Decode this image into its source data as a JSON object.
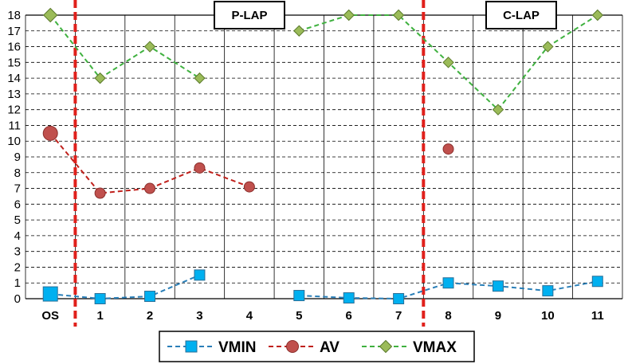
{
  "chart_data": {
    "type": "line",
    "categories": [
      "OS",
      "1",
      "2",
      "3",
      "4",
      "5",
      "6",
      "7",
      "8",
      "9",
      "10",
      "11"
    ],
    "y_ticks": [
      "0",
      "1",
      "2",
      "3",
      "4",
      "5",
      "6",
      "7",
      "8",
      "9",
      "10",
      "11",
      "12",
      "13",
      "14",
      "15",
      "16",
      "17",
      "18"
    ],
    "ylim": [
      0,
      18
    ],
    "grid": true,
    "legend_position": "bottom",
    "annotations": [
      {
        "text": "P-LAP",
        "after_category": "OS"
      },
      {
        "text": "C-LAP",
        "after_category": "7"
      }
    ],
    "series": [
      {
        "name": "VMIN",
        "marker": "square",
        "color": "#00b0f0",
        "values": [
          0.3,
          0.0,
          0.15,
          1.5,
          null,
          0.2,
          0.05,
          0.0,
          1.0,
          0.8,
          0.5,
          1.1
        ]
      },
      {
        "name": "AV",
        "marker": "circle",
        "color": "#c0504d",
        "values": [
          10.5,
          6.7,
          7.0,
          8.3,
          7.1,
          null,
          null,
          null,
          9.5,
          null,
          null,
          null
        ]
      },
      {
        "name": "VMAX",
        "marker": "diamond",
        "color": "#9bbb59",
        "values": [
          18.0,
          14.0,
          16.0,
          14.0,
          null,
          17.0,
          18.0,
          18.0,
          15.0,
          12.0,
          16.0,
          18.0
        ]
      }
    ]
  }
}
